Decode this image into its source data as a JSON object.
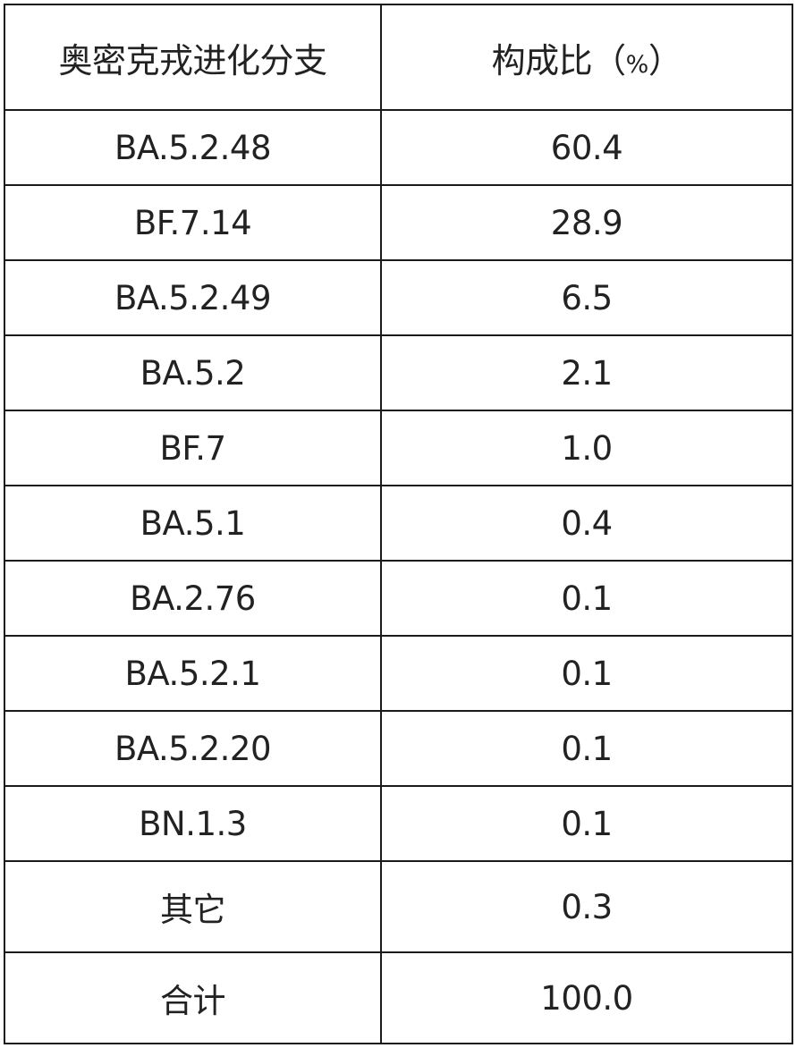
{
  "table": {
    "headers": {
      "branch": "奥密克戎进化分支",
      "ratio_main": "构成比（",
      "ratio_unit": "%",
      "ratio_close": "）"
    },
    "rows": [
      {
        "branch": "BA.5.2.48",
        "ratio": "60.4"
      },
      {
        "branch": "BF.7.14",
        "ratio": "28.9"
      },
      {
        "branch": "BA.5.2.49",
        "ratio": "6.5"
      },
      {
        "branch": "BA.5.2",
        "ratio": "2.1"
      },
      {
        "branch": "BF.7",
        "ratio": "1.0"
      },
      {
        "branch": "BA.5.1",
        "ratio": "0.4"
      },
      {
        "branch": "BA.2.76",
        "ratio": "0.1"
      },
      {
        "branch": "BA.5.2.1",
        "ratio": "0.1"
      },
      {
        "branch": "BA.5.2.20",
        "ratio": "0.1"
      },
      {
        "branch": "BN.1.3",
        "ratio": "0.1"
      },
      {
        "branch": "其它",
        "ratio": "0.3"
      },
      {
        "branch": "合计",
        "ratio": "100.0"
      }
    ]
  }
}
